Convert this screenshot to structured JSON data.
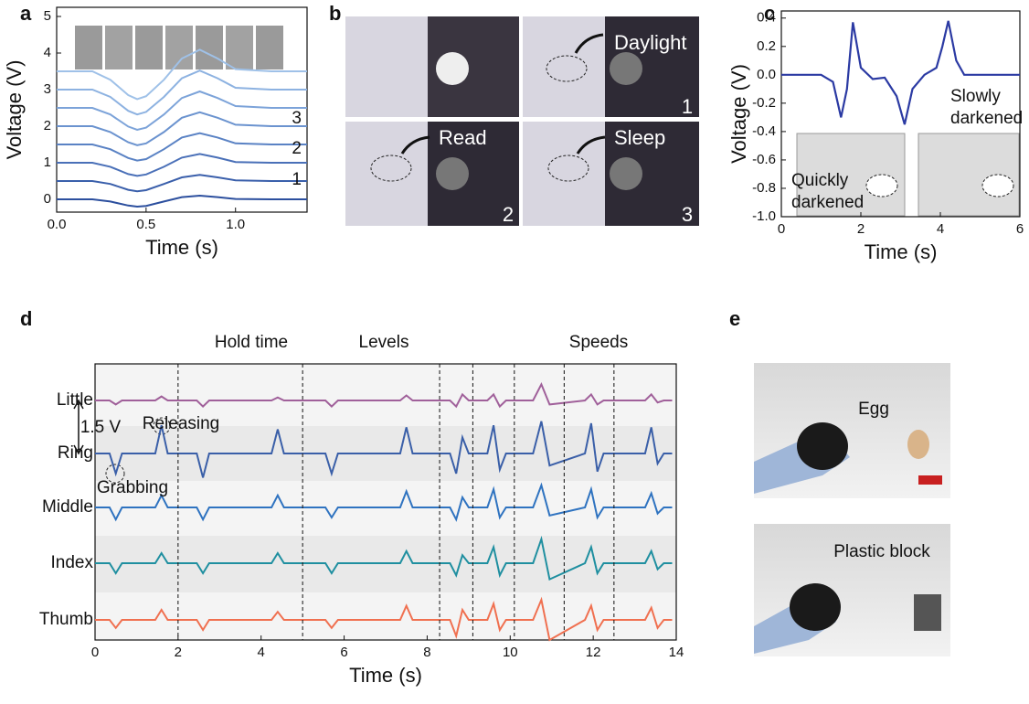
{
  "panel_labels": [
    "a",
    "b",
    "c",
    "d",
    "e"
  ],
  "chart_data": [
    {
      "type": "line",
      "x_label": "Time (s)",
      "y_label": "Voltage (V)",
      "x": [
        0,
        0.2,
        0.3,
        0.4,
        0.45,
        0.5,
        0.6,
        0.7,
        0.8,
        0.9,
        1.0,
        1.2,
        1.4
      ],
      "xlim": [
        0,
        1.4
      ],
      "xticks": [
        {
          "value": 0,
          "label": "0.0"
        },
        {
          "value": 0.5,
          "label": "0.5"
        },
        {
          "value": 1,
          "label": "1.0"
        }
      ],
      "ylim": [
        -0.35,
        5.25
      ],
      "yticks": [
        0,
        1,
        2,
        3,
        4,
        5
      ],
      "series": [
        {
          "color": "#2c4f9e",
          "values": [
            0,
            0,
            -0.06,
            -0.17,
            -0.2,
            -0.18,
            -0.06,
            0.06,
            0.1,
            0.06,
            0.01,
            0,
            0
          ]
        },
        {
          "color": "#3a5fab",
          "values": [
            0.5,
            0.5,
            0.42,
            0.26,
            0.22,
            0.25,
            0.42,
            0.6,
            0.67,
            0.6,
            0.52,
            0.5,
            0.5
          ]
        },
        {
          "color": "#4a70b8",
          "values": [
            1,
            1,
            0.89,
            0.69,
            0.64,
            0.68,
            0.89,
            1.14,
            1.24,
            1.14,
            1.02,
            1,
            1
          ]
        },
        {
          "color": "#5a82c4",
          "values": [
            1.5,
            1.5,
            1.37,
            1.13,
            1.06,
            1.1,
            1.37,
            1.69,
            1.81,
            1.69,
            1.53,
            1.5,
            1.5
          ]
        },
        {
          "color": "#6b93cf",
          "values": [
            2,
            2,
            1.84,
            1.56,
            1.48,
            1.53,
            1.84,
            2.23,
            2.38,
            2.23,
            2.04,
            2,
            2
          ]
        },
        {
          "color": "#7ca3d9",
          "values": [
            2.5,
            2.5,
            2.32,
            1.99,
            1.9,
            1.96,
            2.32,
            2.77,
            2.95,
            2.77,
            2.55,
            2.5,
            2.5
          ]
        },
        {
          "color": "#8db2e1",
          "values": [
            3,
            3,
            2.8,
            2.42,
            2.32,
            2.39,
            2.8,
            3.31,
            3.52,
            3.31,
            3.05,
            3,
            3
          ]
        },
        {
          "color": "#9fc1e8",
          "values": [
            3.5,
            3.5,
            3.27,
            2.85,
            2.74,
            2.82,
            3.27,
            3.85,
            4.09,
            3.85,
            3.56,
            3.5,
            3.5
          ]
        }
      ],
      "annotations": [
        "1",
        "2",
        "3"
      ]
    },
    {
      "type": "line",
      "x_label": "Time (s)",
      "y_label": "Voltage (V)",
      "x": [
        0,
        1.0,
        1.3,
        1.5,
        1.65,
        1.8,
        2.0,
        2.3,
        2.6,
        2.9,
        3.1,
        3.3,
        3.6,
        3.9,
        4.05,
        4.2,
        4.4,
        4.6,
        5.0,
        6.0
      ],
      "values": [
        0,
        0,
        -0.05,
        -0.3,
        -0.1,
        0.37,
        0.05,
        -0.03,
        -0.02,
        -0.15,
        -0.35,
        -0.1,
        0,
        0.05,
        0.2,
        0.38,
        0.1,
        0,
        0,
        0
      ],
      "color": "#2b3aa3",
      "xlim": [
        0,
        6
      ],
      "xticks": [
        0,
        2,
        4,
        6
      ],
      "ylim": [
        -1,
        0.45
      ],
      "yticks": [
        {
          "value": -1,
          "label": "-1.0"
        },
        {
          "value": -0.8,
          "label": "-0.8"
        },
        {
          "value": -0.6,
          "label": "-0.6"
        },
        {
          "value": -0.4,
          "label": "-0.4"
        },
        {
          "value": -0.2,
          "label": "-0.2"
        },
        {
          "value": 0,
          "label": "0.0"
        },
        {
          "value": 0.2,
          "label": "0.2"
        },
        {
          "value": 0.4,
          "label": "0.4"
        }
      ],
      "annotations": [
        [
          "Slowly",
          "darkened"
        ],
        [
          "Quickly",
          "darkened"
        ]
      ]
    },
    {
      "type": "line",
      "x_label": "Time (s)",
      "x": [
        0,
        0.35,
        0.5,
        0.65,
        1.45,
        1.6,
        1.75,
        2.45,
        2.6,
        2.75,
        4.25,
        4.4,
        4.55,
        5.55,
        5.7,
        5.85,
        7.35,
        7.5,
        7.65,
        8.55,
        8.7,
        8.85,
        9.0,
        9.45,
        9.6,
        9.75,
        9.9,
        10.55,
        10.75,
        10.95,
        11.8,
        11.95,
        12.1,
        12.25,
        13.25,
        13.4,
        13.55,
        13.7,
        13.9
      ],
      "xlim": [
        0,
        14
      ],
      "xticks": [
        0,
        2,
        4,
        6,
        8,
        10,
        12,
        14
      ],
      "vlines": [
        2,
        5,
        8.3,
        9.1,
        10.1,
        11.3,
        12.5
      ],
      "series": [
        {
          "name": "Little",
          "color": "#a0609a",
          "values": [
            0,
            0,
            -0.2,
            0,
            0,
            0.2,
            0,
            0,
            -0.3,
            0,
            0,
            0.15,
            0,
            0,
            -0.3,
            0,
            0,
            0.25,
            0,
            0,
            -0.3,
            0.3,
            0,
            0,
            0.3,
            -0.3,
            0,
            0,
            0.8,
            -0.2,
            0,
            0.3,
            -0.2,
            0,
            0,
            0.3,
            -0.1,
            0,
            0
          ]
        },
        {
          "name": "Ring",
          "color": "#3a5fa8",
          "values": [
            0,
            0,
            -1.0,
            0,
            0,
            1.4,
            0,
            0,
            -1.2,
            0,
            0,
            1.2,
            0,
            0,
            -1.0,
            0,
            0,
            1.3,
            0,
            0,
            -1.0,
            0.8,
            0,
            0,
            1.4,
            -0.8,
            0,
            0,
            1.6,
            -0.6,
            0,
            1.5,
            -0.9,
            0,
            0,
            1.3,
            -0.5,
            0,
            0
          ]
        },
        {
          "name": "Middle",
          "color": "#2f73c0",
          "values": [
            0,
            0,
            -0.6,
            0,
            0,
            0.6,
            0,
            0,
            -0.6,
            0,
            0,
            0.6,
            0,
            0,
            -0.5,
            0,
            0,
            0.8,
            0,
            0,
            -0.6,
            0.5,
            0,
            0,
            0.9,
            -0.5,
            0,
            0,
            1.1,
            -0.4,
            0,
            0.9,
            -0.5,
            0,
            0,
            0.7,
            -0.3,
            0,
            0
          ]
        },
        {
          "name": "Index",
          "color": "#1f8fa0",
          "values": [
            0,
            0,
            -0.5,
            0,
            0,
            0.5,
            0,
            0,
            -0.5,
            0,
            0,
            0.5,
            0,
            0,
            -0.5,
            0,
            0,
            0.6,
            0,
            0,
            -0.6,
            0.4,
            0,
            0,
            0.8,
            -0.6,
            0,
            0,
            1.2,
            -0.8,
            0,
            0.8,
            -0.5,
            0,
            0,
            0.6,
            -0.3,
            0,
            0
          ]
        },
        {
          "name": "Thumb",
          "color": "#f07050",
          "values": [
            0,
            0,
            -0.4,
            0,
            0,
            0.5,
            0,
            0,
            -0.5,
            0,
            0,
            0.4,
            0,
            0,
            -0.4,
            0,
            0,
            0.7,
            0,
            0,
            -0.8,
            0.5,
            0,
            0,
            0.8,
            -0.5,
            0,
            0,
            1.0,
            -1.0,
            0,
            0.7,
            -0.5,
            0,
            0,
            0.6,
            -0.4,
            0,
            0
          ]
        }
      ],
      "annotations": [
        "Hold time",
        "Levels",
        "Speeds",
        "1.5 V",
        "Releasing",
        "Grabbing"
      ]
    }
  ],
  "panel_b": {
    "labels": [
      "Daylight",
      "Read",
      "Sleep"
    ],
    "numbers": [
      "1",
      "2",
      "3"
    ]
  },
  "panel_e": {
    "labels": [
      "Egg",
      "Plastic block"
    ]
  }
}
